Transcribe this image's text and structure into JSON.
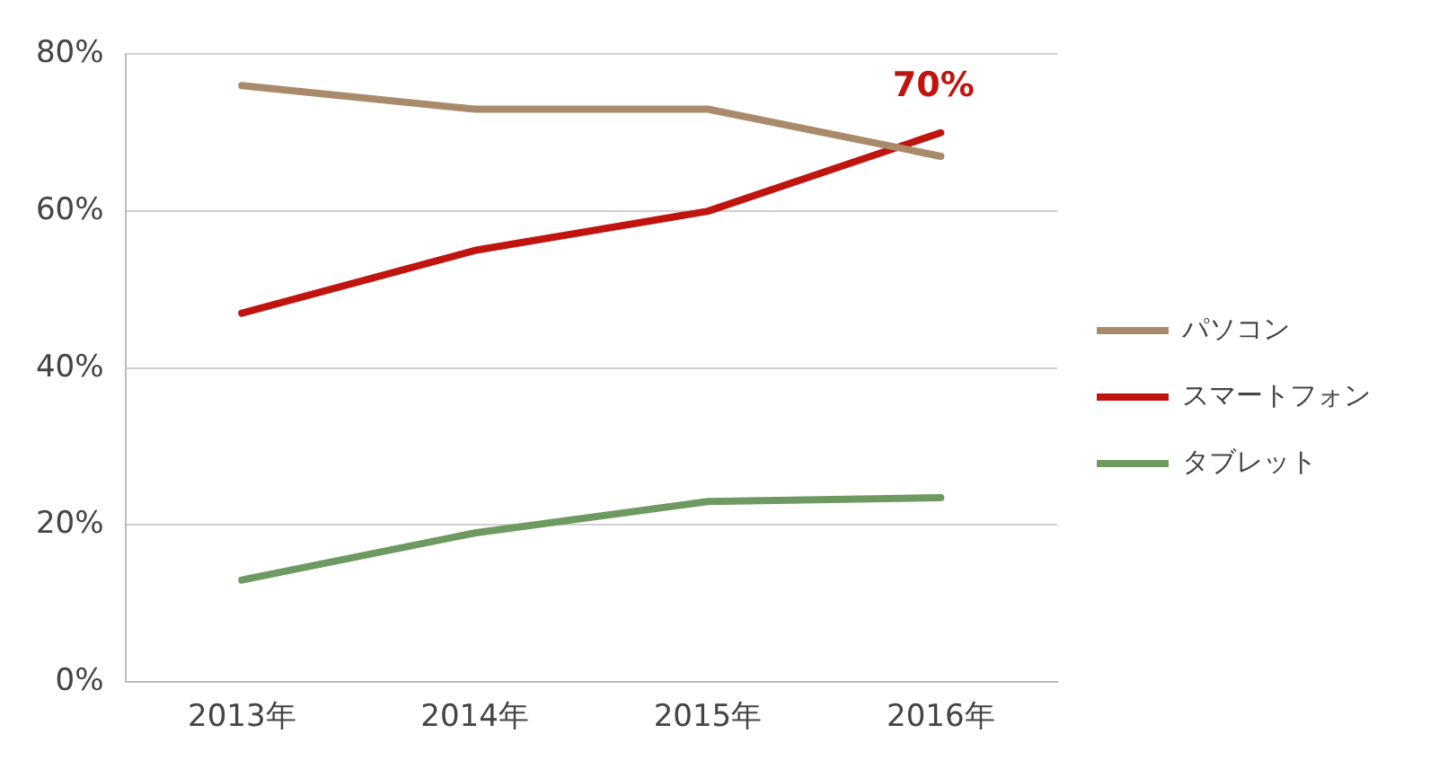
{
  "chart_data": {
    "type": "line",
    "categories": [
      "2013年",
      "2014年",
      "2015年",
      "2016年"
    ],
    "series": [
      {
        "name": "パソコン",
        "color": "#a98b6b",
        "values": [
          76,
          73,
          73,
          67
        ]
      },
      {
        "name": "スマートフォン",
        "color": "#c0140f",
        "values": [
          47,
          55,
          60,
          70
        ],
        "value_labels": [
          null,
          null,
          null,
          "70%"
        ]
      },
      {
        "name": "タブレット",
        "color": "#6e9a62",
        "values": [
          13,
          19,
          23,
          23.5
        ]
      }
    ],
    "ylim": [
      0,
      80
    ],
    "yticks": [
      {
        "value": 0,
        "label": "0%"
      },
      {
        "value": 20,
        "label": "20%"
      },
      {
        "value": 40,
        "label": "40%"
      },
      {
        "value": 60,
        "label": "60%"
      },
      {
        "value": 80,
        "label": "80%"
      }
    ],
    "grid": "y",
    "legend": "right",
    "marker": "none",
    "line_style": "solid"
  }
}
